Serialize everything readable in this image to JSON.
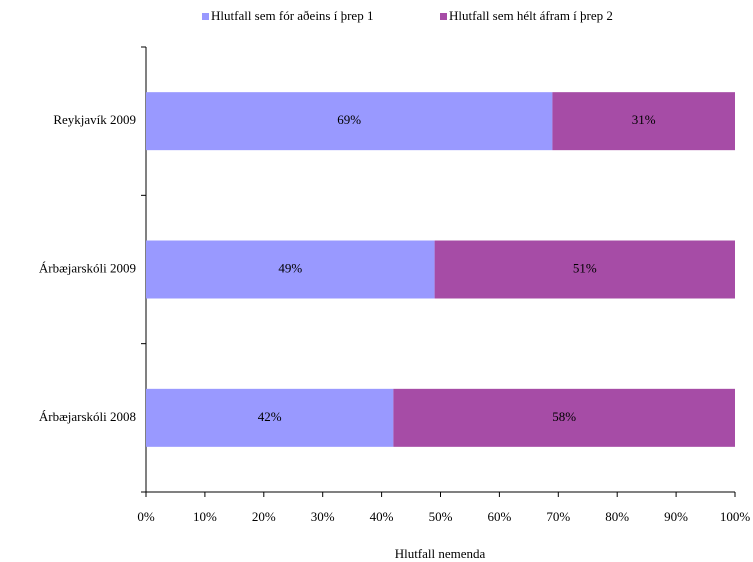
{
  "chart_data": {
    "type": "stacked-barh",
    "categories": [
      "Reykjavík 2009",
      "Árbæjarskóli 2009",
      "Árbæjarskóli 2008"
    ],
    "series": [
      {
        "name": "Hlutfall sem fór aðeins í þrep 1",
        "color": "#9999ff",
        "values": [
          69,
          49,
          42
        ],
        "value_labels": [
          "69%",
          "49%",
          "42%"
        ]
      },
      {
        "name": "Hlutfall sem hélt áfram í þrep 2",
        "color": "#a64ca6",
        "values": [
          31,
          51,
          58
        ],
        "value_labels": [
          "31%",
          "51%",
          "58%"
        ]
      }
    ],
    "xlabel": "Hlutfall nemenda",
    "xlim": [
      0,
      100
    ],
    "xticks": [
      {
        "value": 0,
        "label": "0%"
      },
      {
        "value": 10,
        "label": "10%"
      },
      {
        "value": 20,
        "label": "20%"
      },
      {
        "value": 30,
        "label": "30%"
      },
      {
        "value": 40,
        "label": "40%"
      },
      {
        "value": 50,
        "label": "50%"
      },
      {
        "value": 60,
        "label": "60%"
      },
      {
        "value": 70,
        "label": "70%"
      },
      {
        "value": 80,
        "label": "80%"
      },
      {
        "value": 90,
        "label": "90%"
      },
      {
        "value": 100,
        "label": "100%"
      }
    ],
    "legend": "top"
  }
}
